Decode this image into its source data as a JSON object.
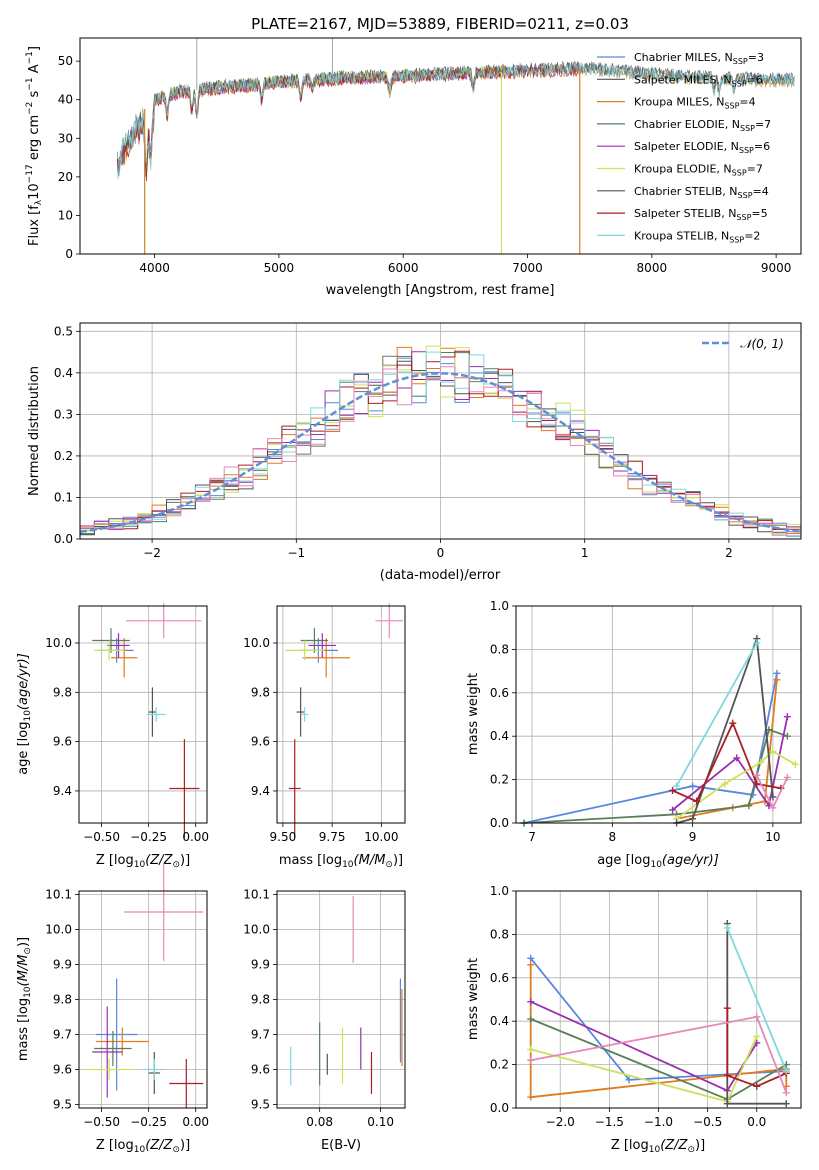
{
  "colors": {
    "blue": "#5b86e0",
    "orange": "#e07b1e",
    "gold": "#c78a25",
    "green": "#5a7e5a",
    "purple": "#9b2fae",
    "lime": "#cde25a",
    "grey": "#545454",
    "red": "#aa1e24",
    "cyan": "#80d8de",
    "pink": "#e688b8",
    "dash": "#5e90d8"
  },
  "chart_data": [
    {
      "id": "spectrum",
      "type": "line",
      "title": "PLATE=2167, MJD=53889, FIBERID=0211, z=0.03",
      "xlabel": "wavelength [Angstrom, rest frame]",
      "ylabel_parts": {
        "a": "Flux [f",
        "sub": "λ",
        "b": "10",
        "sup1": "−17",
        "c": " erg cm",
        "sup2": "−2",
        "d": " s",
        "sup3": "−1",
        "e": " A",
        "sup4": "−1",
        "f": "]"
      },
      "xlim": [
        3400,
        9200
      ],
      "ylim": [
        0,
        56
      ],
      "xticks": [
        4000,
        5000,
        6000,
        7000,
        8000,
        9000
      ],
      "yticks": [
        0,
        10,
        20,
        30,
        40,
        50
      ],
      "legend": [
        {
          "pre": "Chabrier MILES, N",
          "sub": "SSP",
          "post": "=3",
          "color": "#5b86e0"
        },
        {
          "pre": "Salpeter MILES, N",
          "sub": "SSP",
          "post": "=6",
          "color": "#545454"
        },
        {
          "pre": "Kroupa MILES, N",
          "sub": "SSP",
          "post": "=4",
          "color": "#c78a25"
        },
        {
          "pre": "Chabrier ELODIE, N",
          "sub": "SSP",
          "post": "=7",
          "color": "#5a7e5a"
        },
        {
          "pre": "Salpeter ELODIE, N",
          "sub": "SSP",
          "post": "=6",
          "color": "#9b2fae"
        },
        {
          "pre": "Kroupa ELODIE, N",
          "sub": "SSP",
          "post": "=7",
          "color": "#cde25a"
        },
        {
          "pre": "Chabrier STELIB, N",
          "sub": "SSP",
          "post": "=4",
          "color": "#545454"
        },
        {
          "pre": "Salpeter STELIB, N",
          "sub": "SSP",
          "post": "=5",
          "color": "#aa1e24"
        },
        {
          "pre": "Kroupa STELIB, N",
          "sub": "SSP",
          "post": "=2",
          "color": "#80d8de"
        }
      ],
      "continuum": [
        [
          3700,
          26
        ],
        [
          3800,
          33
        ],
        [
          3900,
          37
        ],
        [
          4000,
          40
        ],
        [
          4200,
          42
        ],
        [
          4500,
          43
        ],
        [
          5000,
          44.5
        ],
        [
          5500,
          45.5
        ],
        [
          6000,
          46
        ],
        [
          6300,
          46.5
        ],
        [
          6600,
          47
        ],
        [
          7000,
          47.5
        ],
        [
          7500,
          48
        ],
        [
          8000,
          46.5
        ],
        [
          8500,
          45.5
        ],
        [
          9000,
          45
        ],
        [
          9150,
          45
        ]
      ],
      "series": [
        {
          "color": "#5b86e0",
          "offset": 0.0,
          "start": 3700,
          "end": 9150
        },
        {
          "color": "#545454",
          "offset": 0.4,
          "start": 3700,
          "end": 9150
        },
        {
          "color": "#c78a25",
          "offset": -0.3,
          "start": 3700,
          "end": 9150
        },
        {
          "color": "#5a7e5a",
          "offset": 0.2,
          "start": 3900,
          "end": 6800
        },
        {
          "color": "#9b2fae",
          "offset": -0.2,
          "start": 3900,
          "end": 6800
        },
        {
          "color": "#cde25a",
          "offset": 0.3,
          "start": 3900,
          "end": 6800
        },
        {
          "color": "#545454",
          "offset": 0.5,
          "start": 3700,
          "end": 9150
        },
        {
          "color": "#aa1e24",
          "offset": -0.4,
          "start": 3700,
          "end": 7420
        },
        {
          "color": "#80d8de",
          "offset": 0.1,
          "start": 3700,
          "end": 9150
        }
      ],
      "drops": [
        {
          "x": 3920,
          "color": "#c78a25",
          "ymin": 0
        },
        {
          "x": 6790,
          "color": "#cde25a",
          "ymin": 0
        },
        {
          "x": 7420,
          "color": "#e07b1e",
          "ymin": 0
        }
      ]
    },
    {
      "id": "residuals",
      "type": "histogram",
      "xlabel": "(data-model)/error",
      "ylabel": "Normed distribution",
      "xlim": [
        -2.5,
        2.5
      ],
      "ylim": [
        0,
        0.52
      ],
      "xticks": [
        -2,
        -1,
        0,
        1,
        2
      ],
      "yticks": [
        0.0,
        0.1,
        0.2,
        0.3,
        0.4,
        0.5
      ],
      "legend_label": "𝒩(0, 1)",
      "bin_width": 0.1,
      "series_colors": [
        "#5b86e0",
        "#e07b1e",
        "#5a7e5a",
        "#9b2fae",
        "#cde25a",
        "#545454",
        "#aa1e24",
        "#80d8de",
        "#e688b8"
      ]
    },
    {
      "id": "age_vs_Z",
      "type": "errorbar",
      "xlabel_parts": {
        "a": "Z [log",
        "sub": "10",
        "b": "(Z/Z",
        "sub2": "⊙",
        "c": ")]"
      },
      "ylabel_parts": {
        "a": "age  [log",
        "sub": "10",
        "b": "(age/yr)]"
      },
      "xlim": [
        -0.62,
        0.06
      ],
      "ylim": [
        9.27,
        10.15
      ],
      "xticks": [
        -0.5,
        -0.25,
        0.0
      ],
      "yticks": [
        9.4,
        9.6,
        9.8,
        10.0
      ],
      "points": [
        {
          "x": -0.42,
          "y": 9.97,
          "xerr": 0.09,
          "yerr": 0.05,
          "color": "#5b86e0"
        },
        {
          "x": -0.38,
          "y": 9.94,
          "xerr": 0.07,
          "yerr": 0.08,
          "color": "#e07b1e"
        },
        {
          "x": -0.45,
          "y": 10.01,
          "xerr": 0.1,
          "yerr": 0.05,
          "color": "#5a7e5a"
        },
        {
          "x": -0.41,
          "y": 9.99,
          "xerr": 0.06,
          "yerr": 0.05,
          "color": "#9b2fae"
        },
        {
          "x": -0.46,
          "y": 9.97,
          "xerr": 0.08,
          "yerr": 0.04,
          "color": "#cde25a"
        },
        {
          "x": -0.23,
          "y": 9.72,
          "xerr": 0.02,
          "yerr": 0.1,
          "color": "#545454"
        },
        {
          "x": -0.06,
          "y": 9.41,
          "xerr": 0.08,
          "yerr": 0.2,
          "color": "#aa1e24"
        },
        {
          "x": -0.21,
          "y": 9.71,
          "xerr": 0.05,
          "yerr": 0.03,
          "color": "#80d8de"
        },
        {
          "x": -0.17,
          "y": 10.09,
          "xerr": 0.2,
          "yerr": 0.07,
          "color": "#e688b8"
        }
      ]
    },
    {
      "id": "age_vs_mass",
      "type": "errorbar",
      "xlabel_parts": {
        "a": "mass [log",
        "sub": "10",
        "b": "(M/M",
        "sub2": "⊙",
        "c": ")]"
      },
      "xlim": [
        9.47,
        10.12
      ],
      "ylim": [
        9.27,
        10.15
      ],
      "xticks": [
        9.5,
        9.75,
        10.0
      ],
      "yticks": [
        9.4,
        9.6,
        9.8,
        10.0
      ],
      "points": [
        {
          "x": 9.68,
          "y": 9.97,
          "xerr": 0.1,
          "yerr": 0.05,
          "color": "#5b86e0"
        },
        {
          "x": 9.72,
          "y": 9.94,
          "xerr": 0.12,
          "yerr": 0.08,
          "color": "#e07b1e"
        },
        {
          "x": 9.66,
          "y": 10.01,
          "xerr": 0.07,
          "yerr": 0.05,
          "color": "#5a7e5a"
        },
        {
          "x": 9.7,
          "y": 9.99,
          "xerr": 0.07,
          "yerr": 0.05,
          "color": "#9b2fae"
        },
        {
          "x": 9.61,
          "y": 9.97,
          "xerr": 0.1,
          "yerr": 0.04,
          "color": "#cde25a"
        },
        {
          "x": 9.59,
          "y": 9.72,
          "xerr": 0.02,
          "yerr": 0.1,
          "color": "#545454"
        },
        {
          "x": 9.56,
          "y": 9.41,
          "xerr": 0.03,
          "yerr": 0.2,
          "color": "#aa1e24"
        },
        {
          "x": 9.61,
          "y": 9.71,
          "xerr": 0.02,
          "yerr": 0.03,
          "color": "#80d8de"
        },
        {
          "x": 10.04,
          "y": 10.09,
          "xerr": 0.07,
          "yerr": 0.07,
          "color": "#e688b8"
        }
      ]
    },
    {
      "id": "mass_weight_vs_age",
      "type": "line",
      "xlabel_parts": {
        "a": "age  [log",
        "sub": "10",
        "b": "(age/yr)]"
      },
      "ylabel": "mass weight",
      "xlim": [
        6.8,
        10.35
      ],
      "ylim": [
        0,
        1.0
      ],
      "xticks": [
        7,
        8,
        9,
        10
      ],
      "yticks": [
        0.0,
        0.2,
        0.4,
        0.6,
        0.8,
        1.0
      ],
      "series": [
        {
          "color": "#5b86e0",
          "x": [
            6.9,
            9.0,
            9.75,
            10.05
          ],
          "y": [
            0.0,
            0.17,
            0.13,
            0.69
          ]
        },
        {
          "color": "#e07b1e",
          "x": [
            8.8,
            9.5,
            9.9,
            10.05
          ],
          "y": [
            0.02,
            0.07,
            0.1,
            0.66
          ]
        },
        {
          "color": "#5a7e5a",
          "x": [
            6.9,
            8.8,
            9.7,
            9.95,
            10.18
          ],
          "y": [
            0.0,
            0.04,
            0.08,
            0.43,
            0.4
          ]
        },
        {
          "color": "#9b2fae",
          "x": [
            8.75,
            9.55,
            9.95,
            10.18
          ],
          "y": [
            0.06,
            0.3,
            0.08,
            0.49
          ]
        },
        {
          "color": "#cde25a",
          "x": [
            8.8,
            9.4,
            9.85,
            10.0,
            10.28
          ],
          "y": [
            0.02,
            0.18,
            0.28,
            0.33,
            0.27
          ]
        },
        {
          "color": "#545454",
          "x": [
            8.8,
            9.0,
            9.8,
            10.0
          ],
          "y": [
            0.0,
            0.02,
            0.85,
            0.12
          ]
        },
        {
          "color": "#aa1e24",
          "x": [
            8.75,
            9.05,
            9.5,
            9.8,
            10.1
          ],
          "y": [
            0.15,
            0.1,
            0.46,
            0.18,
            0.16
          ]
        },
        {
          "color": "#80d8de",
          "x": [
            8.8,
            9.8
          ],
          "y": [
            0.17,
            0.83
          ]
        },
        {
          "color": "#e688b8",
          "x": [
            9.8,
            10.0,
            10.18
          ],
          "y": [
            0.22,
            0.07,
            0.21
          ]
        }
      ]
    },
    {
      "id": "mass_vs_Z",
      "type": "errorbar",
      "xlabel_parts": {
        "a": "Z [log",
        "sub": "10",
        "b": "(Z/Z",
        "sub2": "⊙",
        "c": ")]"
      },
      "ylabel_parts": {
        "a": "mass [log",
        "sub": "10",
        "b": "(M/M",
        "sub2": "⊙",
        "c": ")]"
      },
      "xlim": [
        -0.62,
        0.06
      ],
      "ylim": [
        9.49,
        10.11
      ],
      "xticks": [
        -0.5,
        -0.25,
        0.0
      ],
      "yticks": [
        9.5,
        9.6,
        9.7,
        9.8,
        9.9,
        10.0,
        10.1
      ],
      "points": [
        {
          "x": -0.42,
          "y": 9.7,
          "xerr": 0.11,
          "yerr": 0.16,
          "color": "#5b86e0"
        },
        {
          "x": -0.39,
          "y": 9.68,
          "xerr": 0.14,
          "yerr": 0.04,
          "color": "#e07b1e"
        },
        {
          "x": -0.44,
          "y": 9.66,
          "xerr": 0.1,
          "yerr": 0.05,
          "color": "#5a7e5a"
        },
        {
          "x": -0.47,
          "y": 9.65,
          "xerr": 0.08,
          "yerr": 0.13,
          "color": "#9b2fae"
        },
        {
          "x": -0.46,
          "y": 9.6,
          "xerr": 0.13,
          "yerr": 0.03,
          "color": "#cde25a"
        },
        {
          "x": -0.22,
          "y": 9.59,
          "xerr": 0.03,
          "yerr": 0.06,
          "color": "#545454"
        },
        {
          "x": -0.05,
          "y": 9.56,
          "xerr": 0.09,
          "yerr": 0.07,
          "color": "#aa1e24"
        },
        {
          "x": -0.22,
          "y": 9.6,
          "xerr": 0.05,
          "yerr": 0.03,
          "color": "#80d8de"
        },
        {
          "x": -0.17,
          "y": 10.05,
          "xerr": 0.21,
          "yerr": 0.14,
          "color": "#e688b8"
        }
      ]
    },
    {
      "id": "mass_vs_EBV",
      "type": "errorbar",
      "xlabel": "E(B-V)",
      "xlim": [
        0.066,
        0.108
      ],
      "ylim": [
        9.49,
        10.11
      ],
      "xticks": [
        0.08,
        0.1
      ],
      "yticks": [
        9.5,
        9.6,
        9.7,
        9.8,
        9.9,
        10.0,
        10.1
      ],
      "points": [
        {
          "x": 0.0705,
          "y": 9.61,
          "xerr": 0,
          "yerr": 0.055,
          "color": "#80d8de"
        },
        {
          "x": 0.08,
          "y": 9.645,
          "xerr": 0,
          "yerr": 0.09,
          "color": "#5a7e5a"
        },
        {
          "x": 0.0825,
          "y": 9.615,
          "xerr": 0,
          "yerr": 0.03,
          "color": "#545454"
        },
        {
          "x": 0.0875,
          "y": 9.64,
          "xerr": 0,
          "yerr": 0.08,
          "color": "#cde25a"
        },
        {
          "x": 0.091,
          "y": 10.0,
          "xerr": 0,
          "yerr": 0.095,
          "color": "#e688b8"
        },
        {
          "x": 0.0935,
          "y": 9.66,
          "xerr": 0,
          "yerr": 0.06,
          "color": "#9b2fae"
        },
        {
          "x": 0.097,
          "y": 9.59,
          "xerr": 0,
          "yerr": 0.06,
          "color": "#aa1e24"
        },
        {
          "x": 0.1065,
          "y": 9.74,
          "xerr": 0,
          "yerr": 0.12,
          "color": "#5b86e0"
        },
        {
          "x": 0.107,
          "y": 9.72,
          "xerr": 0,
          "yerr": 0.11,
          "color": "#e07b1e"
        }
      ]
    },
    {
      "id": "mass_weight_vs_Z",
      "type": "line",
      "xlabel_parts": {
        "a": "Z [log",
        "sub": "10",
        "b": "(Z/Z",
        "sub2": "⊙",
        "c": ")]"
      },
      "ylabel": "mass weight",
      "xlim": [
        -2.45,
        0.45
      ],
      "ylim": [
        0,
        1.0
      ],
      "xticks": [
        -2.0,
        -1.5,
        -1.0,
        -0.5,
        0.0
      ],
      "xtick_labels": [
        "−2.0",
        "−1.5",
        "−1.0",
        "−0.5",
        "0.0"
      ],
      "yticks": [
        0.0,
        0.2,
        0.4,
        0.6,
        0.8,
        1.0
      ],
      "series": [
        {
          "color": "#5b86e0",
          "x": [
            -2.3,
            -1.3,
            0.3
          ],
          "y": [
            0.69,
            0.13,
            0.17
          ]
        },
        {
          "color": "#e07b1e",
          "x": [
            -2.3,
            -2.3,
            0.3,
            0.3
          ],
          "y": [
            0.66,
            0.05,
            0.18,
            0.1
          ]
        },
        {
          "color": "#5a7e5a",
          "x": [
            -2.3,
            -0.3,
            0.3
          ],
          "y": [
            0.41,
            0.04,
            0.2
          ]
        },
        {
          "color": "#9b2fae",
          "x": [
            -2.3,
            -0.3,
            0.0
          ],
          "y": [
            0.49,
            0.08,
            0.3
          ]
        },
        {
          "color": "#cde25a",
          "x": [
            -2.3,
            -0.3,
            0.0
          ],
          "y": [
            0.27,
            0.03,
            0.33
          ]
        },
        {
          "color": "#545454",
          "x": [
            -0.3,
            -0.3,
            0.3
          ],
          "y": [
            0.85,
            0.02,
            0.02
          ]
        },
        {
          "color": "#aa1e24",
          "x": [
            -0.3,
            -0.3,
            0.0,
            0.3
          ],
          "y": [
            0.46,
            0.15,
            0.1,
            0.16
          ]
        },
        {
          "color": "#80d8de",
          "x": [
            -0.3,
            0.3
          ],
          "y": [
            0.83,
            0.17
          ]
        },
        {
          "color": "#e688b8",
          "x": [
            -2.3,
            0.0,
            0.3
          ],
          "y": [
            0.22,
            0.42,
            0.07
          ]
        }
      ]
    }
  ]
}
